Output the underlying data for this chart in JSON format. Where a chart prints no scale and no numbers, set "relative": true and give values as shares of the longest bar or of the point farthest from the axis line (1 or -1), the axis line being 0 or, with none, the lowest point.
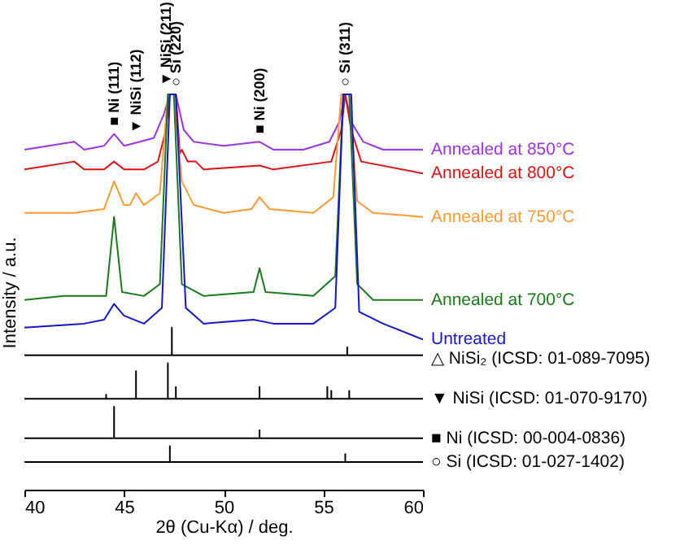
{
  "chart_data": {
    "type": "line",
    "relative": true,
    "ylabel": "Intensity / a.u.",
    "xlabel": "2θ (Cu-Kα) / deg.",
    "xlim": [
      40,
      60
    ],
    "xticks": [
      40,
      45,
      50,
      55,
      60
    ],
    "tick_labels": "x",
    "line_style": "solid",
    "annotations": [
      {
        "text": "■ Ni (111)",
        "x": 44.5,
        "y": 0.9
      },
      {
        "text": "▼ NiSi (112)",
        "x": 45.6,
        "y": 0.88
      },
      {
        "text": "▼ NiSi (211)",
        "x": 47.1,
        "y": 1
      },
      {
        "text": "○ Si (220)",
        "x": 47.6,
        "y": 1
      },
      {
        "text": "■ Ni (200)",
        "x": 51.8,
        "y": 0.88
      },
      {
        "text": "○ Si (311)",
        "x": 56.1,
        "y": 1
      }
    ],
    "series": [
      {
        "name": "Annealed at 850°C",
        "color": "#9933ee",
        "x": [
          40,
          42.5,
          43,
          44,
          44.5,
          45,
          45.8,
          46.5,
          47,
          47.3,
          47.6,
          48,
          48.5,
          50,
          51.8,
          52.5,
          54,
          55.3,
          55.8,
          56.1,
          56.4,
          57,
          58,
          60
        ],
        "values": [
          0.86,
          0.88,
          0.86,
          0.87,
          0.9,
          0.87,
          0.88,
          0.89,
          0.95,
          1,
          1,
          0.91,
          0.88,
          0.87,
          0.88,
          0.86,
          0.86,
          0.88,
          0.93,
          1,
          0.93,
          0.88,
          0.86,
          0.86
        ]
      },
      {
        "name": "Annealed at 800°C",
        "color": "#dd1111",
        "x": [
          40,
          42.5,
          43,
          44,
          44.5,
          45,
          46,
          46.7,
          47.1,
          47.3,
          47.6,
          47.8,
          47.9,
          48.2,
          48.6,
          49,
          51.8,
          52.5,
          55.4,
          55.9,
          56.1,
          56.4,
          56.9,
          60
        ],
        "values": [
          0.81,
          0.83,
          0.81,
          0.81,
          0.83,
          0.81,
          0.81,
          0.83,
          0.91,
          1,
          1,
          0.85,
          0.86,
          0.83,
          0.83,
          0.81,
          0.82,
          0.81,
          0.83,
          0.91,
          1,
          0.91,
          0.83,
          0.8
        ]
      },
      {
        "name": "Annealed at 750°C",
        "color": "#ff9933",
        "x": [
          40,
          42.5,
          44,
          44.5,
          45,
          45.3,
          45.6,
          46,
          46.8,
          47.2,
          47.5,
          47.9,
          48.5,
          50,
          51.4,
          51.8,
          52.3,
          54.5,
          55.5,
          55.9,
          56.3,
          56.7,
          57.5,
          60
        ],
        "values": [
          0.7,
          0.7,
          0.71,
          0.78,
          0.72,
          0.72,
          0.75,
          0.72,
          0.75,
          1,
          1,
          0.78,
          0.72,
          0.7,
          0.71,
          0.74,
          0.71,
          0.7,
          0.74,
          1,
          1,
          0.73,
          0.7,
          0.69
        ]
      },
      {
        "name": "Annealed at 700°C",
        "color": "#1a7a1a",
        "x": [
          40,
          42,
          44.1,
          44.5,
          44.9,
          46,
          46.8,
          47.2,
          47.5,
          47.9,
          49,
          51.5,
          51.8,
          52.1,
          54.5,
          55.6,
          56,
          56.3,
          56.7,
          57.5,
          60
        ],
        "values": [
          0.48,
          0.49,
          0.49,
          0.69,
          0.5,
          0.49,
          0.52,
          1,
          1,
          0.52,
          0.49,
          0.5,
          0.56,
          0.5,
          0.49,
          0.54,
          1,
          1,
          0.52,
          0.48,
          0.48
        ]
      },
      {
        "name": "Untreated",
        "color": "#1515cc",
        "x": [
          40,
          43,
          44,
          44.5,
          45,
          46,
          46.9,
          47.3,
          47.6,
          48.1,
          49,
          51.5,
          52.5,
          54.5,
          55.6,
          56,
          56.4,
          56.8,
          58,
          60
        ],
        "values": [
          0.41,
          0.42,
          0.43,
          0.47,
          0.44,
          0.42,
          0.46,
          1,
          1,
          0.46,
          0.42,
          0.43,
          0.42,
          0.42,
          0.46,
          1,
          1,
          0.45,
          0.42,
          0.38
        ]
      },
      {
        "name": "△ NiSi₂ (ICSD: 01-089-7095)",
        "color": "#000000",
        "x": [
          40,
          47.4,
          47.4,
          47.4,
          56.2,
          56.2,
          56.2,
          60
        ],
        "values": [
          0.34,
          0.34,
          0.41,
          0.34,
          0.34,
          0.36,
          0.34,
          0.34
        ]
      },
      {
        "name": "▼ NiSi (ICSD: 01-070-9170)",
        "color": "#000000",
        "x": [
          40,
          44.1,
          44.1,
          44.1,
          45.6,
          45.6,
          45.6,
          47.2,
          47.2,
          47.2,
          47.6,
          47.6,
          47.6,
          51.8,
          51.8,
          51.8,
          55.2,
          55.2,
          55.2,
          55.4,
          55.4,
          55.4,
          56.3,
          56.3,
          56.3,
          60
        ],
        "values": [
          0.23,
          0.23,
          0.24,
          0.23,
          0.23,
          0.3,
          0.23,
          0.23,
          0.32,
          0.23,
          0.23,
          0.26,
          0.23,
          0.23,
          0.26,
          0.23,
          0.23,
          0.26,
          0.23,
          0.23,
          0.25,
          0.23,
          0.23,
          0.25,
          0.23,
          0.23
        ]
      },
      {
        "name": "■ Ni (ICSD: 00-004-0836)",
        "color": "#000000",
        "x": [
          40,
          44.5,
          44.5,
          44.5,
          51.8,
          51.8,
          51.8,
          60
        ],
        "values": [
          0.13,
          0.13,
          0.21,
          0.13,
          0.13,
          0.15,
          0.13,
          0.13
        ]
      },
      {
        "name": "○ Si (ICSD: 01-027-1402)",
        "color": "#000000",
        "x": [
          40,
          47.3,
          47.3,
          47.3,
          56.1,
          56.1,
          56.1,
          60
        ],
        "values": [
          0.07,
          0.07,
          0.11,
          0.07,
          0.07,
          0.09,
          0.07,
          0.07
        ]
      }
    ]
  }
}
